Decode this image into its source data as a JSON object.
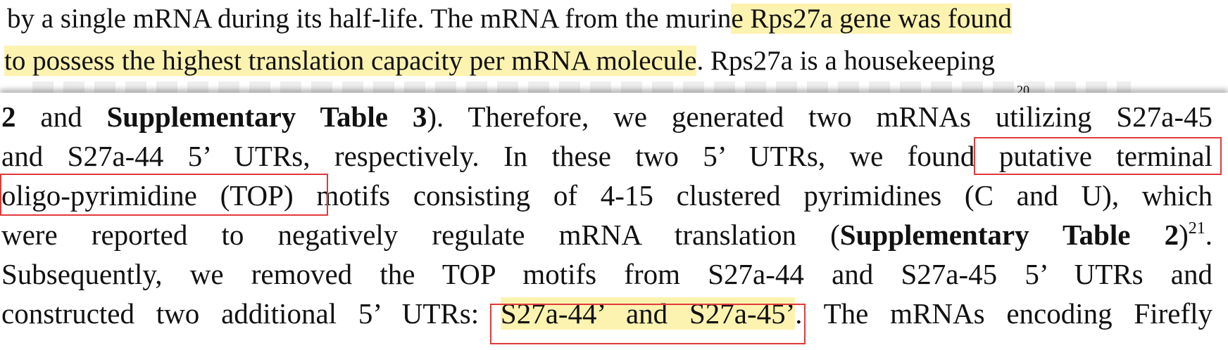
{
  "top_paragraph": {
    "line1_a": "by a single mRNA during its half-life. The mRNA from the murin",
    "line1_b": "e Rps27a gene was found",
    "line2_a": "to possess the highest translation capacity per mRNA molecule",
    "line2_b": ".  Rps27a is a housekeeping",
    "cut_superscript": "20"
  },
  "main_paragraph": {
    "l3": {
      "b1": "2",
      "t1": " and ",
      "b2": "Supplementary Table 3",
      "t2": "). Therefore, we generated two mRNAs utilizing S27a-45"
    },
    "l4": {
      "t1": "and S27a-44 5’ UTRs, respectively. In these two 5’ UTRs, we found ",
      "t2": "putative terminal"
    },
    "l5": {
      "t1": "oligo-pyrimidine (TOP)",
      "t2": " motifs consisting of 4-15 clustered pyrimidines (C and U), which"
    },
    "l6": {
      "t1": "were reported to negatively regulate mRNA translation (",
      "b1": "Supplementary Table 2",
      "t2": ")",
      "sup": "21",
      "t3": "."
    },
    "l7": {
      "t1": "Subsequently, we removed the TOP motifs from S27a-44 and S27a-45 5’ UTRs and"
    },
    "l8": {
      "t1": "constructed two additional 5’ UTRs: ",
      "t2": "S27a-44’ and S27a-45’",
      "t3": ". The mRNAs encoding Firefly"
    }
  },
  "colors": {
    "highlight": "#fdf3b0",
    "annotation_box": "#e03a3a",
    "text": "#111111"
  }
}
